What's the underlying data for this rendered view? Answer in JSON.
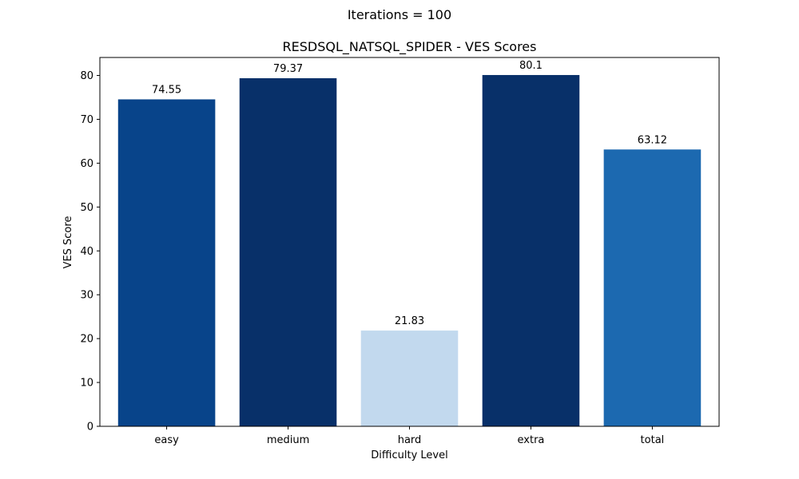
{
  "figure": {
    "suptitle": "Iterations = 100"
  },
  "chart_data": {
    "type": "bar",
    "title": "RESDSQL_NATSQL_SPIDER - VES Scores",
    "xlabel": "Difficulty Level",
    "ylabel": "VES Score",
    "categories": [
      "easy",
      "medium",
      "hard",
      "extra",
      "total"
    ],
    "values": [
      74.55,
      79.37,
      21.83,
      80.1,
      63.12
    ],
    "data_labels": [
      "74.55",
      "79.37",
      "21.83",
      "80.1",
      "63.12"
    ],
    "colors": [
      "#08448a",
      "#083069",
      "#c2d9ee",
      "#083069",
      "#1c69b0"
    ],
    "ylim": [
      0,
      84.1
    ],
    "yticks": [
      0,
      10,
      20,
      30,
      40,
      50,
      60,
      70,
      80
    ],
    "grid": false,
    "legend": "none"
  }
}
